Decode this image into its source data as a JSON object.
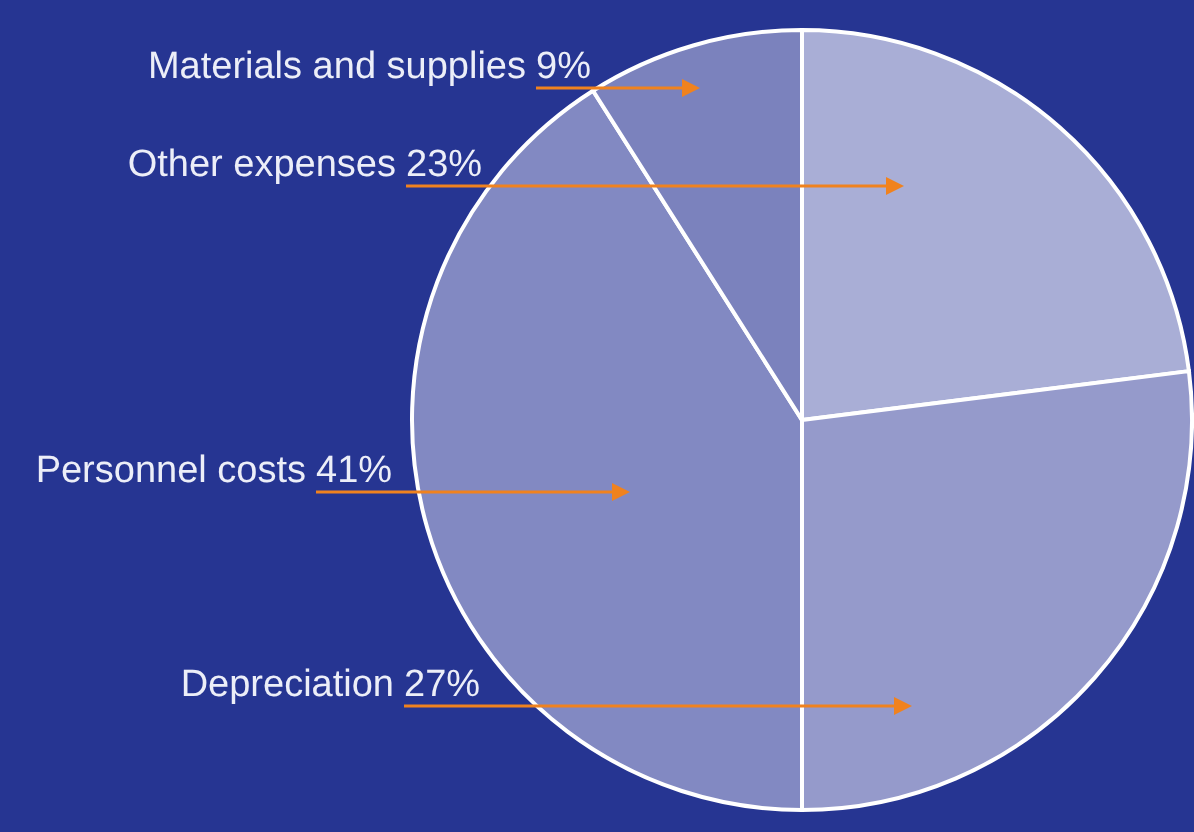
{
  "chart_data": {
    "type": "pie",
    "categories": [
      "Other expenses",
      "Depreciation",
      "Personnel costs",
      "Materials and supplies"
    ],
    "values": [
      23,
      27,
      41,
      9
    ],
    "value_labels": [
      "23%",
      "27%",
      "41%",
      "9%"
    ],
    "colors": [
      "#a9aed6",
      "#959acb",
      "#8289c2",
      "#7b82bd"
    ]
  }
}
